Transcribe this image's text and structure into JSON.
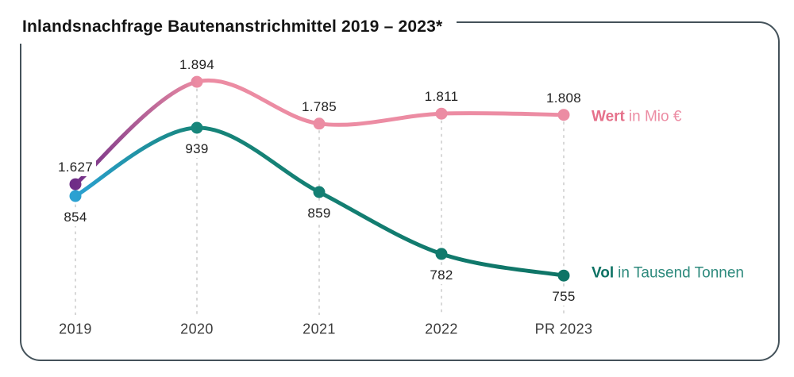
{
  "title": "Inlandsnachfrage Bautenanstrichmittel 2019 – 2023*",
  "chart_data": {
    "type": "line",
    "title": "Inlandsnachfrage Bautenanstrichmittel 2019 – 2023*",
    "categories": [
      "2019",
      "2020",
      "2021",
      "2022",
      "PR 2023"
    ],
    "grid": "dashed-vertical-guides",
    "legend_position": "right-of-last-point",
    "series": [
      {
        "id": "wert",
        "name": "Wert in Mio €",
        "legend_bold": "Wert",
        "legend_rest": "in Mio €",
        "values": [
          1627,
          1894,
          1785,
          1811,
          1808
        ],
        "labels": [
          "1.627",
          "1.894",
          "1.785",
          "1.811",
          "1.808"
        ],
        "label_position": "above",
        "color": "#EC8CA3",
        "color_start": "#6F2D87",
        "legend_bold_color": "#E5708A",
        "legend_rest_color": "#EC8CA3"
      },
      {
        "id": "vol",
        "name": "Vol in Tausend Tonnen",
        "legend_bold": "Vol",
        "legend_rest": "in Tausend Tonnen",
        "values": [
          854,
          939,
          859,
          782,
          755
        ],
        "labels": [
          "854",
          "939",
          "859",
          "782",
          "755"
        ],
        "label_position": "below",
        "color": "#0E7466",
        "color_mid": "#17857A",
        "color_start": "#2BA1D2",
        "legend_bold_color": "#0D7264",
        "legend_rest_color": "#2E8A7D"
      }
    ],
    "style": {
      "frame_border_color": "#44525A",
      "background_color": "#FFFFFF",
      "dash_guide_color": "#CFCFCF",
      "data_label_color": "#222222",
      "axis_label_color": "#3C3C3C",
      "title_color": "#151515"
    }
  }
}
